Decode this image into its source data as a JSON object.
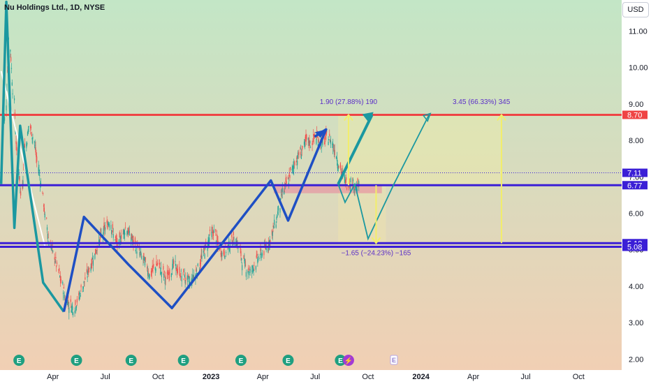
{
  "header": {
    "symbol_title": "Nu Holdings Ltd., 1D, NYSE",
    "currency_label": "USD"
  },
  "colors": {
    "background_top": "#c3e6c6",
    "background_bottom": "#f1cfb4",
    "resistance_line": "#ef4444",
    "support_line": "#3b1fd6",
    "price_line": "#3b1fd6",
    "wave_teal": "#1b98a0",
    "wave_blue": "#1e4fc4",
    "arrow_yellow": "#f2ee6a",
    "candle_up": "#26a69a",
    "candle_down": "#ef5350",
    "label_text": "#5b2ec8"
  },
  "chart_data": {
    "type": "line",
    "x": [
      "2022-01-03",
      "2022-01-10",
      "2022-01-17",
      "2022-01-24",
      "2022-01-31",
      "2022-02-07",
      "2022-02-14",
      "2022-02-21",
      "2022-02-28",
      "2022-03-07",
      "2022-03-14",
      "2022-03-21",
      "2022-03-28",
      "2022-04-04",
      "2022-04-11",
      "2022-04-18",
      "2022-04-25",
      "2022-05-02",
      "2022-05-09",
      "2022-05-16",
      "2022-05-23",
      "2022-05-30",
      "2022-06-06",
      "2022-06-13",
      "2022-06-20",
      "2022-06-27",
      "2022-07-04",
      "2022-07-11",
      "2022-07-18",
      "2022-07-25",
      "2022-08-01",
      "2022-08-08",
      "2022-08-15",
      "2022-08-22",
      "2022-08-29",
      "2022-09-05",
      "2022-09-12",
      "2022-09-19",
      "2022-09-26",
      "2022-10-03",
      "2022-10-10",
      "2022-10-17",
      "2022-10-24",
      "2022-10-31",
      "2022-11-07",
      "2022-11-14",
      "2022-11-21",
      "2022-11-28",
      "2022-12-05",
      "2022-12-12",
      "2022-12-19",
      "2022-12-26",
      "2023-01-02",
      "2023-01-09",
      "2023-01-16",
      "2023-01-23",
      "2023-01-30",
      "2023-02-06",
      "2023-02-13",
      "2023-02-20",
      "2023-02-27",
      "2023-03-06",
      "2023-03-13",
      "2023-03-20",
      "2023-03-27",
      "2023-04-03",
      "2023-04-10",
      "2023-04-17",
      "2023-04-24",
      "2023-05-01",
      "2023-05-08",
      "2023-05-15",
      "2023-05-22",
      "2023-05-29",
      "2023-06-05",
      "2023-06-12",
      "2023-06-19",
      "2023-06-26",
      "2023-07-03",
      "2023-07-10",
      "2023-07-17",
      "2023-07-24",
      "2023-07-31",
      "2023-08-07",
      "2023-08-14",
      "2023-08-21",
      "2023-08-28",
      "2023-09-04",
      "2023-09-11"
    ],
    "series": [
      {
        "values": [
          8.6,
          10.8,
          9.4,
          7.6,
          6.5,
          7.8,
          8.4,
          8.1,
          7.4,
          6.8,
          5.9,
          5.2,
          4.9,
          4.5,
          4.1,
          3.7,
          3.5,
          3.4,
          3.6,
          3.9,
          4.2,
          4.5,
          4.8,
          5.1,
          5.4,
          5.6,
          5.8,
          5.4,
          5.1,
          5.4,
          5.6,
          5.4,
          5.2,
          5.0,
          4.8,
          4.6,
          4.3,
          4.5,
          4.6,
          4.4,
          4.2,
          4.4,
          4.6,
          4.4,
          4.3,
          4.2,
          4.1,
          4.3,
          4.5,
          4.8,
          5.1,
          5.4,
          5.5,
          5.1,
          4.9,
          5.0,
          5.2,
          5.3,
          5.1,
          4.7,
          4.5,
          4.4,
          4.6,
          4.8,
          4.9,
          5.1,
          5.3,
          5.7,
          6.1,
          6.6,
          6.8,
          7.1,
          7.4,
          7.6,
          7.8,
          8.0,
          7.9,
          8.1,
          8.0,
          7.9,
          8.1,
          8.0,
          7.7,
          7.3,
          7.0,
          6.8,
          6.9,
          6.7,
          6.76
        ]
      }
    ],
    "xlabel": "",
    "ylabel": "",
    "y_ticks": [
      "11.00",
      "10.00",
      "9.00",
      "8.00",
      "7.00",
      "6.00",
      "5.00",
      "4.00",
      "3.00",
      "2.00"
    ],
    "ylim": [
      1.7,
      11.85
    ],
    "x_tick_labels": [
      "Apr",
      "Jul",
      "Oct",
      "2023",
      "Apr",
      "Jul",
      "Oct",
      "2024",
      "Apr",
      "Jul",
      "Oct"
    ],
    "x_tick_dates": [
      "2022-04-01",
      "2022-07-01",
      "2022-10-01",
      "2023-01-01",
      "2023-04-01",
      "2023-07-01",
      "2023-10-01",
      "2024-01-01",
      "2024-04-01",
      "2024-07-01",
      "2024-10-01"
    ],
    "xlim": [
      "2021-12-30",
      "2024-12-15"
    ],
    "horizontal_levels": [
      {
        "value": 8.7,
        "label": "8.70",
        "color": "#ef4444"
      },
      {
        "value": 7.11,
        "label": "7.11",
        "color": "#3b1fd6",
        "dotted": true
      },
      {
        "value": 6.77,
        "label": "6.77",
        "color": "#3b1fd6"
      },
      {
        "value": 5.18,
        "label": "5.18",
        "color": "#3b1fd6"
      },
      {
        "value": 5.08,
        "label": "5.08",
        "color": "#3b1fd6"
      }
    ],
    "annotations": [
      {
        "text": "1.90 (27.88%) 190",
        "x": "2023-08-28",
        "y": 9.0
      },
      {
        "text": "3.45 (66.33%) 345",
        "x": "2024-04-15",
        "y": 9.0
      },
      {
        "text": "−1.65 (−24.23%) −165",
        "x": "2023-10-15",
        "y": 4.85
      }
    ],
    "teal_wave": [
      [
        "2022-01-01",
        6.8
      ],
      [
        "2022-01-10",
        11.8
      ],
      [
        "2022-01-24",
        5.6
      ],
      [
        "2022-02-03",
        8.4
      ],
      [
        "2022-03-15",
        4.1
      ],
      [
        "2022-04-20",
        3.3
      ]
    ],
    "blue_wave": [
      [
        "2022-04-20",
        3.3
      ],
      [
        "2022-05-25",
        5.9
      ],
      [
        "2022-08-10",
        4.6
      ],
      [
        "2022-10-25",
        3.4
      ],
      [
        "2023-04-15",
        6.9
      ],
      [
        "2023-05-15",
        5.8
      ],
      [
        "2023-07-20",
        8.3
      ],
      [
        "2023-06-30",
        8.1
      ]
    ],
    "projection_arrow_big": [
      [
        "2023-08-10",
        6.8
      ],
      [
        "2023-10-08",
        8.7
      ]
    ],
    "projection_small_path": [
      [
        "2023-08-10",
        6.8
      ],
      [
        "2023-08-22",
        6.3
      ],
      [
        "2023-09-08",
        6.8
      ],
      [
        "2023-10-01",
        5.3
      ],
      [
        "2023-11-15",
        6.8
      ],
      [
        "2024-01-15",
        8.7
      ]
    ],
    "grid": false,
    "legend": "none",
    "earnings_markers": [
      "2022-02-01",
      "2022-05-12",
      "2022-08-15",
      "2022-11-14",
      "2023-02-22",
      "2023-05-15",
      "2023-08-14",
      "2023-11-15"
    ],
    "earnings_icon_letter": "E",
    "earnings_icon_name": "earnings-icon",
    "dividend_icon_name": "dividend-icon"
  }
}
